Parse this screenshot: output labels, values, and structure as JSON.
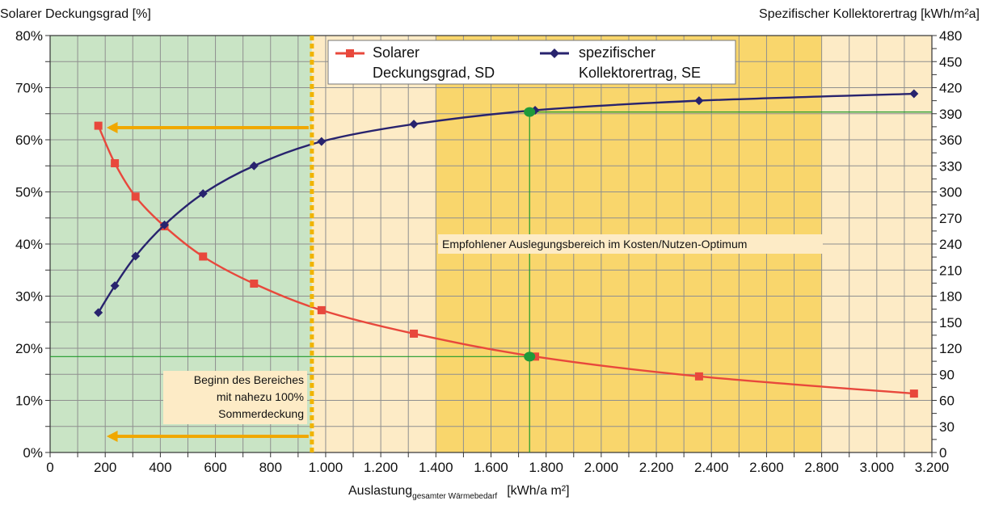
{
  "chart_data": {
    "type": "line",
    "y_left_title": "Solarer Deckungsgrad  [%]",
    "y_right_title": "Spezifischer Kollektorertrag [kWh/m²a]",
    "x_title_main": "Auslastung",
    "x_title_sub": "gesamter Wärmebedarf",
    "x_title_unit": "[kWh/a m²]",
    "x_lim": [
      0,
      3200
    ],
    "y_left_lim": [
      0,
      80
    ],
    "y_right_lim": [
      0,
      480
    ],
    "x_ticks": [
      "0",
      "200",
      "400",
      "600",
      "800",
      "1.000",
      "1.200",
      "1.400",
      "1.600",
      "1.800",
      "2.000",
      "2.200",
      "2.400",
      "2.600",
      "2.800",
      "3.000",
      "3.200"
    ],
    "y_left_ticks": [
      "0%",
      "10%",
      "20%",
      "30%",
      "40%",
      "50%",
      "60%",
      "70%",
      "80%"
    ],
    "y_right_ticks": [
      "0",
      "30",
      "60",
      "90",
      "120",
      "150",
      "180",
      "210",
      "240",
      "270",
      "300",
      "330",
      "360",
      "390",
      "420",
      "450",
      "480"
    ],
    "grid": true,
    "regions": [
      {
        "from": 0,
        "to": 950,
        "color": "#c9e4c5"
      },
      {
        "from": 950,
        "to": 1400,
        "color": "#fdebc6"
      },
      {
        "from": 1400,
        "to": 2800,
        "color": "#f9d66c"
      },
      {
        "from": 2800,
        "to": 3200,
        "color": "#fdebc6"
      }
    ],
    "series": [
      {
        "name": "Solarer Deckungsgrad, SD",
        "axis": "left",
        "color": "#e8483c",
        "marker": "square",
        "x": [
          175,
          235,
          310,
          415,
          555,
          740,
          985,
          1320,
          1760,
          2355,
          3135
        ],
        "y": [
          62.7,
          55.5,
          49.1,
          43.4,
          37.6,
          32.4,
          27.3,
          22.8,
          18.4,
          14.6,
          11.3
        ]
      },
      {
        "name": "spezifischer Kollektorertrag, SE",
        "axis": "right",
        "color": "#28236e",
        "marker": "diamond",
        "x": [
          175,
          235,
          310,
          415,
          555,
          740,
          985,
          1320,
          1760,
          2355,
          3135
        ],
        "y": [
          161,
          192,
          226,
          262,
          298,
          330,
          358,
          378,
          394,
          405,
          413
        ]
      }
    ],
    "legend": {
      "position": "top-center",
      "entries": [
        {
          "line1": "Solarer",
          "line2": "Deckungsgrad, SD"
        },
        {
          "line1": "spezifischer",
          "line2": "Kollektorertrag, SE"
        }
      ]
    },
    "annotations": {
      "recommended_label": "Empfohlener Auslegungsbereich im Kosten/Nutzen-Optimum",
      "summer_coverage_lines": [
        "Beginn des Bereiches",
        "mit nahezu 100%",
        "Sommerdeckung"
      ],
      "optimum_x": 1740,
      "optimum_sd": 18.4,
      "optimum_se": 392,
      "boundary_x": 950
    },
    "colors": {
      "grid": "#8f8f8f",
      "boundary": "#f0b400",
      "arrow": "#f0a800",
      "guide": "#1f9a2a",
      "optimum_marker": "#1f9a3a"
    }
  }
}
